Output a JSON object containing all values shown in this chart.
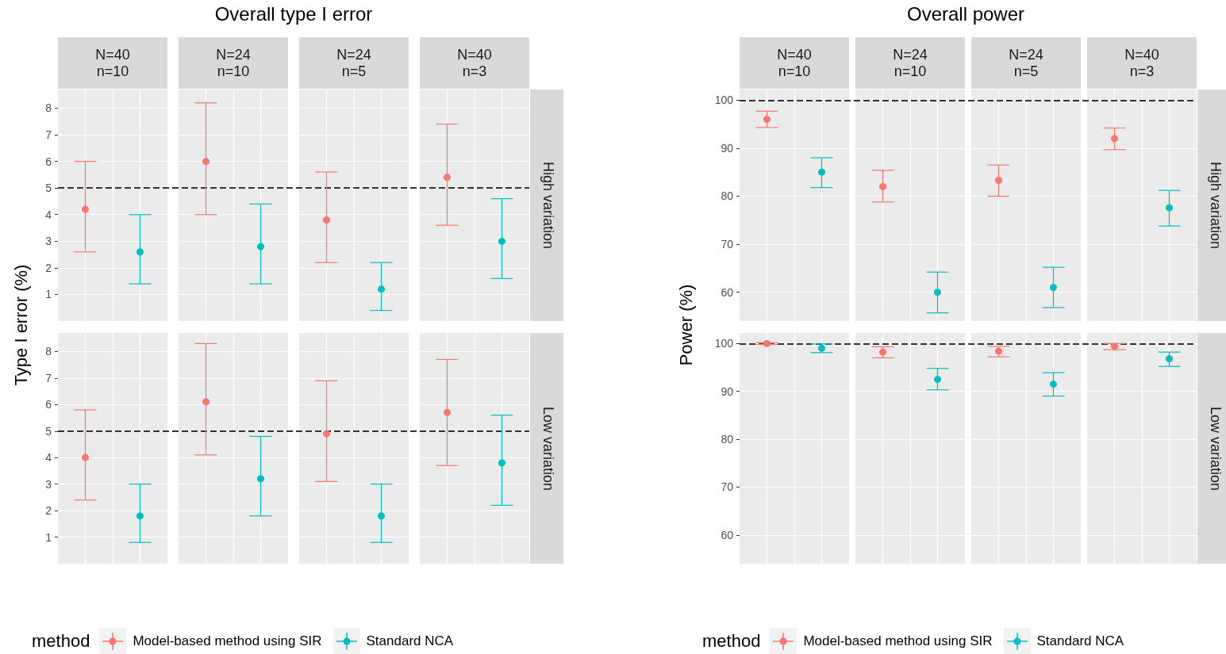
{
  "chart_data": [
    {
      "type": "scatter",
      "title": "Overall type I error",
      "ylabel": "Type I error (%)",
      "categories": [
        "N=40\nn=10",
        "N=24\nn=10",
        "N=24\nn=5",
        "N=40\nn=3"
      ],
      "annotations": [
        "High variation"
      ],
      "series": [
        {
          "color": "#f8766d",
          "values": [
            4.2,
            6.0,
            3.8,
            5.4
          ],
          "errors": [
            [
              2.6,
              6.0
            ],
            [
              4.0,
              8.2
            ],
            [
              2.2,
              5.6
            ],
            [
              3.6,
              7.4
            ]
          ]
        },
        {
          "color": "#00bfc4",
          "values": [
            2.6,
            2.8,
            1.2,
            3.0
          ],
          "errors": [
            [
              1.4,
              4.0
            ],
            [
              1.4,
              4.4
            ],
            [
              0.4,
              2.2
            ],
            [
              1.6,
              4.6
            ]
          ]
        }
      ],
      "ylim": [
        0,
        8.7
      ],
      "yticks": [
        1,
        2,
        3,
        4,
        5,
        6,
        7,
        8
      ],
      "grid": true,
      "marker": "circle",
      "ref_lines": [
        {
          "axis": "y",
          "value": 5,
          "line_style": "dashed"
        }
      ]
    },
    {
      "type": "scatter",
      "categories": [
        null,
        null,
        null,
        null
      ],
      "annotations": [
        "Low variation"
      ],
      "legend": "bottom",
      "legend_title": "method",
      "series": [
        {
          "name": "Model-based method using SIR",
          "color": "#f8766d",
          "values": [
            4.0,
            6.1,
            4.9,
            5.7
          ],
          "errors": [
            [
              2.4,
              5.8
            ],
            [
              4.1,
              8.3
            ],
            [
              3.1,
              6.9
            ],
            [
              3.7,
              7.7
            ]
          ]
        },
        {
          "name": "Standard NCA",
          "color": "#00bfc4",
          "values": [
            1.8,
            3.2,
            1.8,
            3.8
          ],
          "errors": [
            [
              0.8,
              3.0
            ],
            [
              1.8,
              4.8
            ],
            [
              0.8,
              3.0
            ],
            [
              2.2,
              5.6
            ]
          ]
        }
      ],
      "ylim": [
        0,
        8.7
      ],
      "yticks": [
        1,
        2,
        3,
        4,
        5,
        6,
        7,
        8
      ],
      "grid": true,
      "marker": "circle",
      "tick_labels": "y",
      "ref_lines": [
        {
          "axis": "y",
          "value": 5,
          "line_style": "dashed"
        }
      ]
    },
    {
      "type": "scatter",
      "title": "Overall power",
      "ylabel": "Power (%)",
      "categories": [
        "N=40\nn=10",
        "N=24\nn=10",
        "N=24\nn=5",
        "N=40\nn=3"
      ],
      "annotations": [
        "High variation"
      ],
      "series": [
        {
          "color": "#f8766d",
          "values": [
            96,
            82,
            83.3,
            92
          ],
          "errors": [
            [
              94.3,
              97.7
            ],
            [
              78.8,
              85.4
            ],
            [
              80,
              86.5
            ],
            [
              89.7,
              94.2
            ]
          ]
        },
        {
          "color": "#00bfc4",
          "values": [
            85,
            60,
            61,
            77.6
          ],
          "errors": [
            [
              81.8,
              88
            ],
            [
              55.7,
              64.2
            ],
            [
              56.8,
              65.2
            ],
            [
              73.8,
              81.2
            ]
          ]
        }
      ],
      "ylim": [
        54,
        102.2
      ],
      "yticks": [
        60,
        70,
        80,
        90,
        100
      ],
      "grid": true,
      "marker": "circle",
      "ref_lines": [
        {
          "axis": "y",
          "value": 100,
          "line_style": "dashed"
        }
      ]
    },
    {
      "type": "scatter",
      "categories": [
        null,
        null,
        null,
        null
      ],
      "annotations": [
        "Low variation"
      ],
      "legend": "bottom",
      "legend_title": "method",
      "series": [
        {
          "name": "Model-based method using SIR",
          "color": "#f8766d",
          "values": [
            100,
            98.2,
            98.4,
            99.4
          ],
          "errors": [
            [
              99.8,
              100.2
            ],
            [
              97,
              99.3
            ],
            [
              97.2,
              99.4
            ],
            [
              98.7,
              100
            ]
          ]
        },
        {
          "name": "Standard NCA",
          "color": "#00bfc4",
          "values": [
            99,
            92.5,
            91.5,
            96.8
          ],
          "errors": [
            [
              98.1,
              99.9
            ],
            [
              90.3,
              94.8
            ],
            [
              89,
              93.9
            ],
            [
              95.2,
              98.2
            ]
          ]
        }
      ],
      "ylim": [
        54,
        102.2
      ],
      "yticks": [
        60,
        70,
        80,
        90,
        100
      ],
      "grid": true,
      "marker": "circle",
      "tick_labels": "y",
      "ref_lines": [
        {
          "axis": "y",
          "value": 100,
          "line_style": "dashed"
        }
      ]
    }
  ]
}
